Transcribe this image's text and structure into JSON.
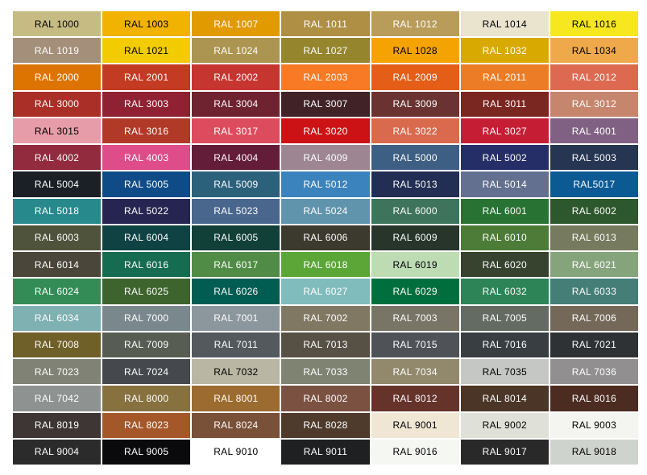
{
  "page": {
    "background": "#FFFFFF"
  },
  "chart_data": {
    "type": "table",
    "columns": 7,
    "rows": 17,
    "cells": [
      {
        "label": "RAL 1000",
        "bg": "#C6BC83",
        "fg": "#000000"
      },
      {
        "label": "RAL 1003",
        "bg": "#F2B200",
        "fg": "#000000"
      },
      {
        "label": "RAL 1007",
        "bg": "#E19A00",
        "fg": "#FFFFFF"
      },
      {
        "label": "RAL 1011",
        "bg": "#AE8F44",
        "fg": "#FFFFFF"
      },
      {
        "label": "RAL 1012",
        "bg": "#B99C59",
        "fg": "#FFFFFF"
      },
      {
        "label": "RAL 1014",
        "bg": "#EAE3CE",
        "fg": "#000000"
      },
      {
        "label": "RAL 1016",
        "bg": "#F6E71E",
        "fg": "#000000"
      },
      {
        "label": "RAL 1019",
        "bg": "#A48F7A",
        "fg": "#FFFFFF"
      },
      {
        "label": "RAL 1021",
        "bg": "#F3CC00",
        "fg": "#000000"
      },
      {
        "label": "RAL 1024",
        "bg": "#AC9550",
        "fg": "#FFFFFF"
      },
      {
        "label": "RAL 1027",
        "bg": "#95852D",
        "fg": "#FFFFFF"
      },
      {
        "label": "RAL 1028",
        "bg": "#F5A300",
        "fg": "#000000"
      },
      {
        "label": "RAL 1032",
        "bg": "#D8A900",
        "fg": "#FFFFFF"
      },
      {
        "label": "RAL 1034",
        "bg": "#EFA94A",
        "fg": "#000000"
      },
      {
        "label": "RAL 2000",
        "bg": "#DD7402",
        "fg": "#FFFFFF"
      },
      {
        "label": "RAL 2001",
        "bg": "#C23B22",
        "fg": "#FFFFFF"
      },
      {
        "label": "RAL 2002",
        "bg": "#C73530",
        "fg": "#FFFFFF"
      },
      {
        "label": "RAL 2003",
        "bg": "#F87A25",
        "fg": "#FFFFFF"
      },
      {
        "label": "RAL 2009",
        "bg": "#E45E17",
        "fg": "#FFFFFF"
      },
      {
        "label": "RAL 2011",
        "bg": "#EC7C25",
        "fg": "#FFFFFF"
      },
      {
        "label": "RAL 2012",
        "bg": "#DD6A50",
        "fg": "#FFFFFF"
      },
      {
        "label": "RAL 3000",
        "bg": "#AA3027",
        "fg": "#FFFFFF"
      },
      {
        "label": "RAL 3003",
        "bg": "#8F2132",
        "fg": "#FFFFFF"
      },
      {
        "label": "RAL 3004",
        "bg": "#6F2230",
        "fg": "#FFFFFF"
      },
      {
        "label": "RAL 3007",
        "bg": "#412227",
        "fg": "#FFFFFF"
      },
      {
        "label": "RAL 3009",
        "bg": "#6A3331",
        "fg": "#FFFFFF"
      },
      {
        "label": "RAL 3011",
        "bg": "#7A2621",
        "fg": "#FFFFFF"
      },
      {
        "label": "RAL 3012",
        "bg": "#C6856D",
        "fg": "#FFFFFF"
      },
      {
        "label": "RAL 3015",
        "bg": "#E79DA9",
        "fg": "#000000"
      },
      {
        "label": "RAL 3016",
        "bg": "#B13927",
        "fg": "#FFFFFF"
      },
      {
        "label": "RAL 3017",
        "bg": "#DC4C5E",
        "fg": "#FFFFFF"
      },
      {
        "label": "RAL 3020",
        "bg": "#CC1215",
        "fg": "#FFFFFF"
      },
      {
        "label": "RAL 3022",
        "bg": "#D96A4E",
        "fg": "#FFFFFF"
      },
      {
        "label": "RAL 3027",
        "bg": "#C51D34",
        "fg": "#FFFFFF"
      },
      {
        "label": "RAL 4001",
        "bg": "#816183",
        "fg": "#FFFFFF"
      },
      {
        "label": "RAL 4002",
        "bg": "#922B3E",
        "fg": "#FFFFFF"
      },
      {
        "label": "RAL 4003",
        "bg": "#DE4C8A",
        "fg": "#FFFFFF"
      },
      {
        "label": "RAL 4004",
        "bg": "#641D39",
        "fg": "#FFFFFF"
      },
      {
        "label": "RAL 4009",
        "bg": "#9D8592",
        "fg": "#FFFFFF"
      },
      {
        "label": "RAL 5000",
        "bg": "#3E5F84",
        "fg": "#FFFFFF"
      },
      {
        "label": "RAL 5002",
        "bg": "#252E66",
        "fg": "#FFFFFF"
      },
      {
        "label": "RAL 5003",
        "bg": "#253552",
        "fg": "#FFFFFF"
      },
      {
        "label": "RAL 5004",
        "bg": "#1B2027",
        "fg": "#FFFFFF"
      },
      {
        "label": "RAL 5005",
        "bg": "#0F4C87",
        "fg": "#FFFFFF"
      },
      {
        "label": "RAL 5009",
        "bg": "#2C617C",
        "fg": "#FFFFFF"
      },
      {
        "label": "RAL 5012",
        "bg": "#3B83BD",
        "fg": "#FFFFFF"
      },
      {
        "label": "RAL 5013",
        "bg": "#222E54",
        "fg": "#FFFFFF"
      },
      {
        "label": "RAL 5014",
        "bg": "#63708F",
        "fg": "#FFFFFF"
      },
      {
        "label": "RAL5017",
        "bg": "#0C5A94",
        "fg": "#FFFFFF"
      },
      {
        "label": "RAL 5018",
        "bg": "#27898C",
        "fg": "#FFFFFF"
      },
      {
        "label": "RAL 5022",
        "bg": "#262552",
        "fg": "#FFFFFF"
      },
      {
        "label": "RAL 5023",
        "bg": "#49678D",
        "fg": "#FFFFFF"
      },
      {
        "label": "RAL 5024",
        "bg": "#6093AC",
        "fg": "#FFFFFF"
      },
      {
        "label": "RAL 6000",
        "bg": "#3D745B",
        "fg": "#FFFFFF"
      },
      {
        "label": "RAL 6001",
        "bg": "#287233",
        "fg": "#FFFFFF"
      },
      {
        "label": "RAL 6002",
        "bg": "#2D572C",
        "fg": "#FFFFFF"
      },
      {
        "label": "RAL 6003",
        "bg": "#50533C",
        "fg": "#FFFFFF"
      },
      {
        "label": "RAL 6004",
        "bg": "#0E4243",
        "fg": "#FFFFFF"
      },
      {
        "label": "RAL 6005",
        "bg": "#114038",
        "fg": "#FFFFFF"
      },
      {
        "label": "RAL 6006",
        "bg": "#3C392E",
        "fg": "#FFFFFF"
      },
      {
        "label": "RAL 6009",
        "bg": "#27352A",
        "fg": "#FFFFFF"
      },
      {
        "label": "RAL 6010",
        "bg": "#4C7C37",
        "fg": "#FFFFFF"
      },
      {
        "label": "RAL 6013",
        "bg": "#767A5E",
        "fg": "#FFFFFF"
      },
      {
        "label": "RAL 6014",
        "bg": "#4A4639",
        "fg": "#FFFFFF"
      },
      {
        "label": "RAL 6016",
        "bg": "#156C50",
        "fg": "#FFFFFF"
      },
      {
        "label": "RAL 6017",
        "bg": "#508C45",
        "fg": "#FFFFFF"
      },
      {
        "label": "RAL 6018",
        "bg": "#5BA637",
        "fg": "#FFFFFF"
      },
      {
        "label": "RAL 6019",
        "bg": "#BDDCB4",
        "fg": "#000000"
      },
      {
        "label": "RAL 6020",
        "bg": "#37422F",
        "fg": "#FFFFFF"
      },
      {
        "label": "RAL 6021",
        "bg": "#86A47C",
        "fg": "#FFFFFF"
      },
      {
        "label": "RAL 6024",
        "bg": "#338C56",
        "fg": "#FFFFFF"
      },
      {
        "label": "RAL 6025",
        "bg": "#3D642D",
        "fg": "#FFFFFF"
      },
      {
        "label": "RAL 6026",
        "bg": "#015D52",
        "fg": "#FFFFFF"
      },
      {
        "label": "RAL 6027",
        "bg": "#81BCBC",
        "fg": "#FFFFFF"
      },
      {
        "label": "RAL 6029",
        "bg": "#006F3D",
        "fg": "#FFFFFF"
      },
      {
        "label": "RAL 6032",
        "bg": "#2D8456",
        "fg": "#FFFFFF"
      },
      {
        "label": "RAL 6033",
        "bg": "#457D77",
        "fg": "#FFFFFF"
      },
      {
        "label": "RAL 6034",
        "bg": "#7FB0B2",
        "fg": "#FFFFFF"
      },
      {
        "label": "RAL 7000",
        "bg": "#7A888E",
        "fg": "#FFFFFF"
      },
      {
        "label": "RAL 7001",
        "bg": "#8C969D",
        "fg": "#FFFFFF"
      },
      {
        "label": "RAL 7002",
        "bg": "#817863",
        "fg": "#FFFFFF"
      },
      {
        "label": "RAL 7003",
        "bg": "#787466",
        "fg": "#FFFFFF"
      },
      {
        "label": "RAL 7005",
        "bg": "#646B63",
        "fg": "#FFFFFF"
      },
      {
        "label": "RAL 7006",
        "bg": "#746858",
        "fg": "#FFFFFF"
      },
      {
        "label": "RAL 7008",
        "bg": "#6F5F28",
        "fg": "#FFFFFF"
      },
      {
        "label": "RAL 7009",
        "bg": "#575D52",
        "fg": "#FFFFFF"
      },
      {
        "label": "RAL 7011",
        "bg": "#53595D",
        "fg": "#FFFFFF"
      },
      {
        "label": "RAL 7013",
        "bg": "#575044",
        "fg": "#FFFFFF"
      },
      {
        "label": "RAL 7015",
        "bg": "#4F5358",
        "fg": "#FFFFFF"
      },
      {
        "label": "RAL 7016",
        "bg": "#383E42",
        "fg": "#FFFFFF"
      },
      {
        "label": "RAL 7021",
        "bg": "#2E3234",
        "fg": "#FFFFFF"
      },
      {
        "label": "RAL 7023",
        "bg": "#7F8274",
        "fg": "#FFFFFF"
      },
      {
        "label": "RAL 7024",
        "bg": "#45494E",
        "fg": "#FFFFFF"
      },
      {
        "label": "RAL 7032",
        "bg": "#B9B6A3",
        "fg": "#000000"
      },
      {
        "label": "RAL 7033",
        "bg": "#7E8471",
        "fg": "#FFFFFF"
      },
      {
        "label": "RAL 7034",
        "bg": "#92886C",
        "fg": "#FFFFFF"
      },
      {
        "label": "RAL 7035",
        "bg": "#C5C7C4",
        "fg": "#000000"
      },
      {
        "label": "RAL 7036",
        "bg": "#918F90",
        "fg": "#FFFFFF"
      },
      {
        "label": "RAL 7042",
        "bg": "#8E9291",
        "fg": "#FFFFFF"
      },
      {
        "label": "RAL 8000",
        "bg": "#87713F",
        "fg": "#FFFFFF"
      },
      {
        "label": "RAL 8001",
        "bg": "#9C6B30",
        "fg": "#FFFFFF"
      },
      {
        "label": "RAL 8002",
        "bg": "#7B5141",
        "fg": "#FFFFFF"
      },
      {
        "label": "RAL 8012",
        "bg": "#66332B",
        "fg": "#FFFFFF"
      },
      {
        "label": "RAL 8014",
        "bg": "#4A3526",
        "fg": "#FFFFFF"
      },
      {
        "label": "RAL 8016",
        "bg": "#4C2B20",
        "fg": "#FFFFFF"
      },
      {
        "label": "RAL 8019",
        "bg": "#3D3635",
        "fg": "#FFFFFF"
      },
      {
        "label": "RAL 8023",
        "bg": "#A45729",
        "fg": "#FFFFFF"
      },
      {
        "label": "RAL 8024",
        "bg": "#795038",
        "fg": "#FFFFFF"
      },
      {
        "label": "RAL 8028",
        "bg": "#4E3B2B",
        "fg": "#FFFFFF"
      },
      {
        "label": "RAL 9001",
        "bg": "#EFE6D4",
        "fg": "#000000"
      },
      {
        "label": "RAL 9002",
        "bg": "#DFE1D8",
        "fg": "#000000"
      },
      {
        "label": "RAL 9003",
        "bg": "#F4F5F1",
        "fg": "#000000"
      },
      {
        "label": "RAL 9004",
        "bg": "#2B2B2C",
        "fg": "#FFFFFF"
      },
      {
        "label": "RAL 9005",
        "bg": "#0A0A0D",
        "fg": "#FFFFFF"
      },
      {
        "label": "RAL 9010",
        "bg": "#FFFFFF",
        "fg": "#000000"
      },
      {
        "label": "RAL 9011",
        "bg": "#1F2022",
        "fg": "#FFFFFF"
      },
      {
        "label": "RAL 9016",
        "bg": "#F5F7F2",
        "fg": "#000000"
      },
      {
        "label": "RAL 9017",
        "bg": "#29292A",
        "fg": "#FFFFFF"
      },
      {
        "label": "RAL 9018",
        "bg": "#CFD3CD",
        "fg": "#000000"
      }
    ]
  }
}
